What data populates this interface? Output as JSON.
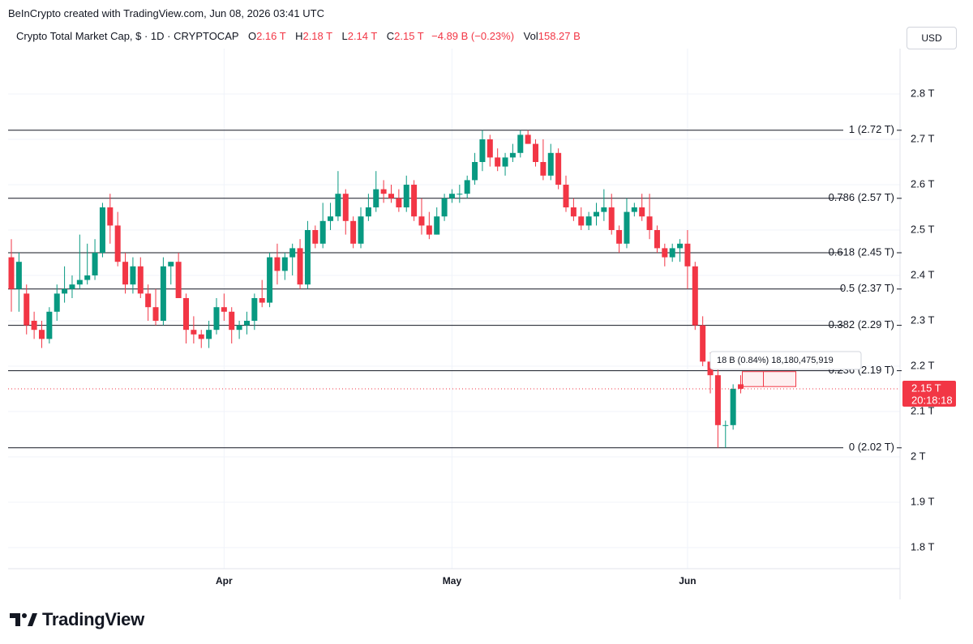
{
  "header": {
    "credit": "BeInCrypto created with TradingView.com, Jun 08, 2026 03:41 UTC",
    "symbol_title": "Crypto Total Market Cap, $ · 1D · CRYPTOCAP",
    "ohlc": {
      "o_label": "O",
      "o_value": "2.16 T",
      "h_label": "H",
      "h_value": "2.18 T",
      "l_label": "L",
      "l_value": "2.14 T",
      "c_label": "C",
      "c_value": "2.15 T",
      "change": "−4.89 B (−0.23%)",
      "vol_label": "Vol",
      "vol_value": "158.27 B"
    },
    "currency_button": "USD"
  },
  "footer": {
    "brand": "TradingView"
  },
  "colors": {
    "up": "#089981",
    "down": "#f23645",
    "fib_line": "#131722",
    "grid": "#f0f3fa"
  },
  "chart_data": {
    "type": "candlestick",
    "y_unit": "T",
    "ylim": [
      1.76,
      2.89
    ],
    "yticks": [
      {
        "value": 2.8,
        "label": "2.8 T"
      },
      {
        "value": 2.7,
        "label": "2.7 T"
      },
      {
        "value": 2.6,
        "label": "2.6 T"
      },
      {
        "value": 2.5,
        "label": "2.5 T"
      },
      {
        "value": 2.4,
        "label": "2.4 T"
      },
      {
        "value": 2.3,
        "label": "2.3 T"
      },
      {
        "value": 2.2,
        "label": "2.2 T"
      },
      {
        "value": 2.1,
        "label": "2.1 T"
      },
      {
        "value": 2.0,
        "label": "2 T"
      },
      {
        "value": 1.9,
        "label": "1.9 T"
      },
      {
        "value": 1.8,
        "label": "1.8 T"
      }
    ],
    "xticks": [
      {
        "index": 28,
        "label": "Apr"
      },
      {
        "index": 58,
        "label": "May"
      },
      {
        "index": 89,
        "label": "Jun"
      }
    ],
    "fib_levels": [
      {
        "value": 2.72,
        "label": "1 (2.72 T)"
      },
      {
        "value": 2.57,
        "label": "0.786 (2.57 T)"
      },
      {
        "value": 2.45,
        "label": "0.618 (2.45 T)"
      },
      {
        "value": 2.37,
        "label": "0.5 (2.37 T)"
      },
      {
        "value": 2.29,
        "label": "0.382 (2.29 T)"
      },
      {
        "value": 2.19,
        "label": "0.236 (2.19 T)"
      },
      {
        "value": 2.02,
        "label": "0 (2.02 T)"
      }
    ],
    "last_price": {
      "value": 2.15,
      "label": "2.15 T",
      "countdown": "20:18:18"
    },
    "measure_label": "18 B (0.84%) 18,180,475,919",
    "candles": [
      [
        2.44,
        2.48,
        2.32,
        2.37
      ],
      [
        2.37,
        2.45,
        2.32,
        2.43
      ],
      [
        2.36,
        2.38,
        2.27,
        2.29
      ],
      [
        2.3,
        2.32,
        2.26,
        2.28
      ],
      [
        2.28,
        2.3,
        2.24,
        2.26
      ],
      [
        2.26,
        2.33,
        2.25,
        2.32
      ],
      [
        2.32,
        2.38,
        2.3,
        2.36
      ],
      [
        2.36,
        2.42,
        2.34,
        2.37
      ],
      [
        2.37,
        2.4,
        2.35,
        2.38
      ],
      [
        2.38,
        2.49,
        2.37,
        2.39
      ],
      [
        2.39,
        2.47,
        2.38,
        2.4
      ],
      [
        2.4,
        2.48,
        2.39,
        2.45
      ],
      [
        2.45,
        2.56,
        2.44,
        2.55
      ],
      [
        2.55,
        2.58,
        2.47,
        2.51
      ],
      [
        2.51,
        2.54,
        2.42,
        2.43
      ],
      [
        2.43,
        2.45,
        2.36,
        2.38
      ],
      [
        2.38,
        2.44,
        2.36,
        2.42
      ],
      [
        2.42,
        2.44,
        2.35,
        2.36
      ],
      [
        2.36,
        2.38,
        2.3,
        2.33
      ],
      [
        2.33,
        2.37,
        2.29,
        2.3
      ],
      [
        2.3,
        2.44,
        2.29,
        2.42
      ],
      [
        2.42,
        2.43,
        2.38,
        2.43
      ],
      [
        2.43,
        2.45,
        2.35,
        2.35
      ],
      [
        2.35,
        2.36,
        2.25,
        2.28
      ],
      [
        2.28,
        2.31,
        2.25,
        2.27
      ],
      [
        2.27,
        2.28,
        2.24,
        2.26
      ],
      [
        2.26,
        2.3,
        2.24,
        2.28
      ],
      [
        2.28,
        2.35,
        2.27,
        2.33
      ],
      [
        2.33,
        2.36,
        2.3,
        2.32
      ],
      [
        2.32,
        2.33,
        2.25,
        2.28
      ],
      [
        2.28,
        2.3,
        2.26,
        2.29
      ],
      [
        2.29,
        2.32,
        2.27,
        2.3
      ],
      [
        2.3,
        2.36,
        2.28,
        2.35
      ],
      [
        2.35,
        2.39,
        2.33,
        2.34
      ],
      [
        2.34,
        2.45,
        2.33,
        2.44
      ],
      [
        2.44,
        2.47,
        2.38,
        2.41
      ],
      [
        2.41,
        2.45,
        2.39,
        2.44
      ],
      [
        2.44,
        2.47,
        2.4,
        2.46
      ],
      [
        2.46,
        2.48,
        2.37,
        2.38
      ],
      [
        2.38,
        2.52,
        2.37,
        2.5
      ],
      [
        2.5,
        2.51,
        2.46,
        2.47
      ],
      [
        2.47,
        2.56,
        2.46,
        2.52
      ],
      [
        2.52,
        2.56,
        2.5,
        2.53
      ],
      [
        2.53,
        2.63,
        2.52,
        2.58
      ],
      [
        2.58,
        2.59,
        2.49,
        2.52
      ],
      [
        2.52,
        2.53,
        2.46,
        2.47
      ],
      [
        2.47,
        2.55,
        2.46,
        2.53
      ],
      [
        2.53,
        2.58,
        2.52,
        2.55
      ],
      [
        2.55,
        2.63,
        2.54,
        2.59
      ],
      [
        2.59,
        2.61,
        2.56,
        2.58
      ],
      [
        2.58,
        2.6,
        2.56,
        2.57
      ],
      [
        2.57,
        2.59,
        2.54,
        2.55
      ],
      [
        2.55,
        2.62,
        2.54,
        2.6
      ],
      [
        2.6,
        2.61,
        2.52,
        2.53
      ],
      [
        2.53,
        2.57,
        2.49,
        2.51
      ],
      [
        2.51,
        2.54,
        2.48,
        2.49
      ],
      [
        2.49,
        2.55,
        2.49,
        2.53
      ],
      [
        2.53,
        2.58,
        2.52,
        2.57
      ],
      [
        2.57,
        2.59,
        2.56,
        2.58
      ],
      [
        2.58,
        2.6,
        2.56,
        2.58
      ],
      [
        2.58,
        2.62,
        2.57,
        2.61
      ],
      [
        2.61,
        2.67,
        2.6,
        2.65
      ],
      [
        2.65,
        2.72,
        2.63,
        2.7
      ],
      [
        2.7,
        2.71,
        2.64,
        2.66
      ],
      [
        2.66,
        2.68,
        2.63,
        2.64
      ],
      [
        2.64,
        2.67,
        2.62,
        2.66
      ],
      [
        2.66,
        2.69,
        2.65,
        2.67
      ],
      [
        2.67,
        2.72,
        2.66,
        2.71
      ],
      [
        2.71,
        2.72,
        2.69,
        2.69
      ],
      [
        2.69,
        2.7,
        2.64,
        2.65
      ],
      [
        2.65,
        2.7,
        2.61,
        2.62
      ],
      [
        2.62,
        2.69,
        2.61,
        2.67
      ],
      [
        2.67,
        2.68,
        2.59,
        2.6
      ],
      [
        2.6,
        2.62,
        2.54,
        2.55
      ],
      [
        2.55,
        2.57,
        2.52,
        2.53
      ],
      [
        2.53,
        2.55,
        2.5,
        2.51
      ],
      [
        2.51,
        2.54,
        2.5,
        2.53
      ],
      [
        2.53,
        2.56,
        2.51,
        2.54
      ],
      [
        2.54,
        2.59,
        2.52,
        2.55
      ],
      [
        2.55,
        2.58,
        2.49,
        2.5
      ],
      [
        2.5,
        2.51,
        2.45,
        2.47
      ],
      [
        2.47,
        2.57,
        2.46,
        2.54
      ],
      [
        2.54,
        2.56,
        2.53,
        2.55
      ],
      [
        2.55,
        2.58,
        2.52,
        2.53
      ],
      [
        2.53,
        2.58,
        2.48,
        2.5
      ],
      [
        2.5,
        2.51,
        2.45,
        2.46
      ],
      [
        2.46,
        2.47,
        2.42,
        2.44
      ],
      [
        2.44,
        2.47,
        2.43,
        2.46
      ],
      [
        2.46,
        2.48,
        2.43,
        2.47
      ],
      [
        2.47,
        2.5,
        2.37,
        2.42
      ],
      [
        2.42,
        2.43,
        2.28,
        2.29
      ],
      [
        2.29,
        2.31,
        2.2,
        2.21
      ],
      [
        2.21,
        2.23,
        2.14,
        2.18
      ],
      [
        2.18,
        2.2,
        2.02,
        2.07
      ],
      [
        2.07,
        2.08,
        2.02,
        2.07
      ],
      [
        2.07,
        2.16,
        2.06,
        2.15
      ],
      [
        2.16,
        2.18,
        2.14,
        2.15
      ]
    ]
  }
}
